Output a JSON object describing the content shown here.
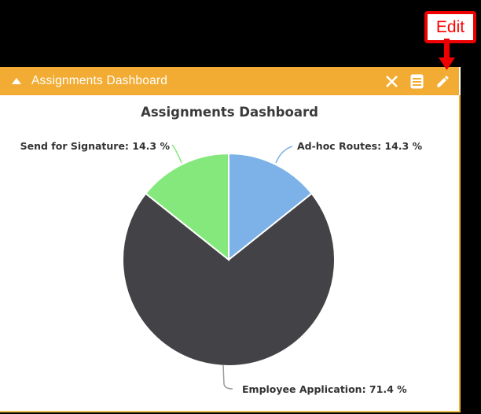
{
  "callout": {
    "label": "Edit"
  },
  "header": {
    "title": "Assignments Dashboard",
    "background": "#F2AC33",
    "icons": [
      "collapse-triangle",
      "close-x",
      "list-view",
      "edit-pencil"
    ]
  },
  "colors": {
    "page_bg": "#000000",
    "panel_bg": "#FFFFFF",
    "panel_border": "#F2B230",
    "callout_red": "#EE0000",
    "icon_white": "#FFFFFF"
  },
  "chart_data": {
    "type": "pie",
    "title": "Assignments Dashboard",
    "start_angle": "12 o'clock, clockwise",
    "legend_position": "none",
    "slices": [
      {
        "label": "Ad-hoc Routes",
        "value_pct": 14.3,
        "display": "Ad-hoc Routes: 14.3 %",
        "color": "#7CB2E8",
        "leader_color": "#7CB2E8"
      },
      {
        "label": "Employee Application",
        "value_pct": 71.4,
        "display": "Employee Application: 71.4 %",
        "color": "#434347",
        "leader_color": "#9A9A9A"
      },
      {
        "label": "Send for Signature",
        "value_pct": 14.3,
        "display": "Send for Signature: 14.3 %",
        "color": "#85E87C",
        "leader_color": "#85E87C"
      }
    ],
    "label_color": "#333333",
    "title_color": "#3A3A3A"
  }
}
